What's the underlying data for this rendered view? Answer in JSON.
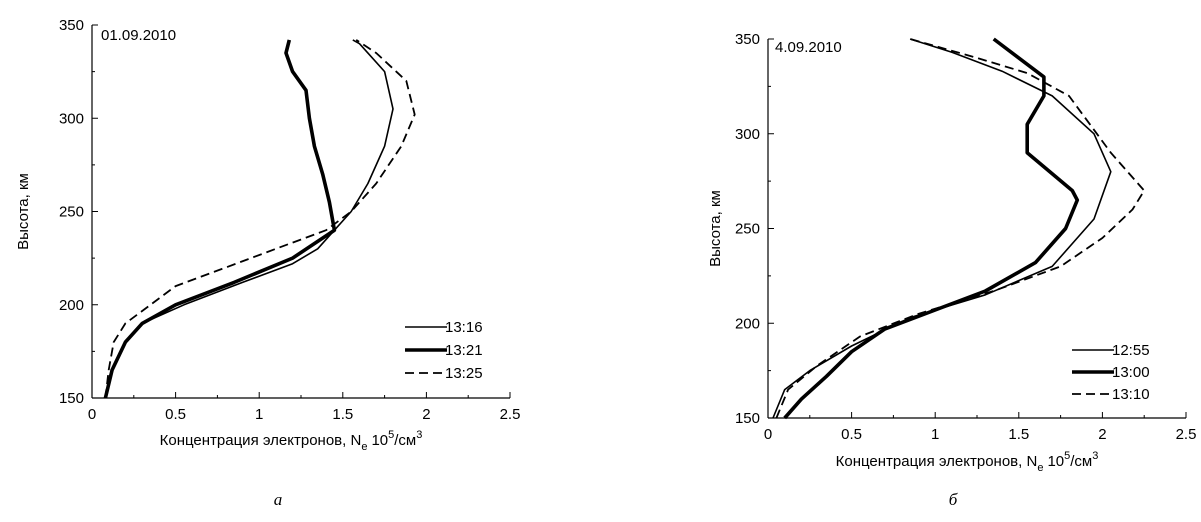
{
  "chart_data": [
    {
      "type": "line",
      "date_label": "01.09.2010",
      "xlabel": "Концентрация электронов, N",
      "xlabel_sub": "e",
      "xlabel_unit": "10",
      "xlabel_exp": "5",
      "xlabel_unit2": "/см",
      "xlabel_exp2": "3",
      "ylabel": "Высота, км",
      "xlim": [
        0,
        2.5
      ],
      "ylim": [
        150,
        350
      ],
      "xticks": [
        "0",
        "0.5",
        "1",
        "1.5",
        "2",
        "2.5"
      ],
      "yticks": [
        "150",
        "200",
        "250",
        "300",
        "350"
      ],
      "caption": "а",
      "legend_position": "bottom-right",
      "series": [
        {
          "name": "13:16",
          "style": "thin",
          "x": [
            0.08,
            0.12,
            0.2,
            0.3,
            0.55,
            0.9,
            1.2,
            1.35,
            1.45,
            1.55,
            1.65,
            1.75,
            1.8,
            1.75,
            1.6,
            1.56
          ],
          "y": [
            150,
            165,
            180,
            190,
            200,
            212,
            222,
            230,
            240,
            250,
            265,
            285,
            305,
            325,
            340,
            342
          ]
        },
        {
          "name": "13:21",
          "style": "bold",
          "x": [
            0.08,
            0.12,
            0.2,
            0.3,
            0.5,
            0.85,
            1.2,
            1.45,
            1.42,
            1.38,
            1.33,
            1.3,
            1.28,
            1.2,
            1.16,
            1.18
          ],
          "y": [
            150,
            165,
            180,
            190,
            200,
            212,
            225,
            240,
            255,
            270,
            285,
            300,
            315,
            325,
            335,
            342
          ]
        },
        {
          "name": "13:25",
          "style": "dashed",
          "x": [
            0.08,
            0.1,
            0.13,
            0.2,
            0.35,
            0.5,
            0.8,
            1.1,
            1.4,
            1.55,
            1.7,
            1.85,
            1.93,
            1.88,
            1.7,
            1.58
          ],
          "y": [
            150,
            165,
            180,
            190,
            200,
            210,
            220,
            230,
            240,
            250,
            265,
            285,
            302,
            320,
            335,
            342
          ]
        }
      ]
    },
    {
      "type": "line",
      "date_label": "4.09.2010",
      "xlabel": "Концентрация электронов, N",
      "xlabel_sub": "e",
      "xlabel_unit": "10",
      "xlabel_exp": "5",
      "xlabel_unit2": "/см",
      "xlabel_exp2": "3",
      "ylabel": "Высота, км",
      "xlim": [
        0,
        2.5
      ],
      "ylim": [
        150,
        350
      ],
      "xticks": [
        "0",
        "0.5",
        "1",
        "1.5",
        "2",
        "2.5"
      ],
      "yticks": [
        "150",
        "200",
        "250",
        "300",
        "350"
      ],
      "caption": "б",
      "legend_position": "bottom-right",
      "series": [
        {
          "name": "12:55",
          "style": "thin",
          "x": [
            0.03,
            0.1,
            0.25,
            0.5,
            0.85,
            1.3,
            1.7,
            1.95,
            2.05,
            1.95,
            1.7,
            1.4,
            1.1,
            0.85
          ],
          "y": [
            150,
            165,
            175,
            188,
            203,
            215,
            230,
            255,
            280,
            300,
            320,
            333,
            343,
            350
          ]
        },
        {
          "name": "13:00",
          "style": "bold",
          "x": [
            0.1,
            0.2,
            0.35,
            0.5,
            0.7,
            1.0,
            1.3,
            1.6,
            1.78,
            1.85,
            1.82,
            1.55,
            1.55,
            1.65,
            1.65,
            1.35
          ],
          "y": [
            150,
            160,
            172,
            185,
            197,
            207,
            217,
            232,
            250,
            265,
            270,
            290,
            305,
            320,
            330,
            350
          ]
        },
        {
          "name": "13:10",
          "style": "dashed",
          "x": [
            0.05,
            0.12,
            0.3,
            0.55,
            0.9,
            1.35,
            1.75,
            2.0,
            2.18,
            2.25,
            2.05,
            1.8,
            1.55,
            1.25,
            0.85
          ],
          "y": [
            150,
            165,
            178,
            193,
            205,
            217,
            230,
            245,
            260,
            270,
            290,
            320,
            332,
            340,
            350
          ]
        }
      ]
    }
  ]
}
